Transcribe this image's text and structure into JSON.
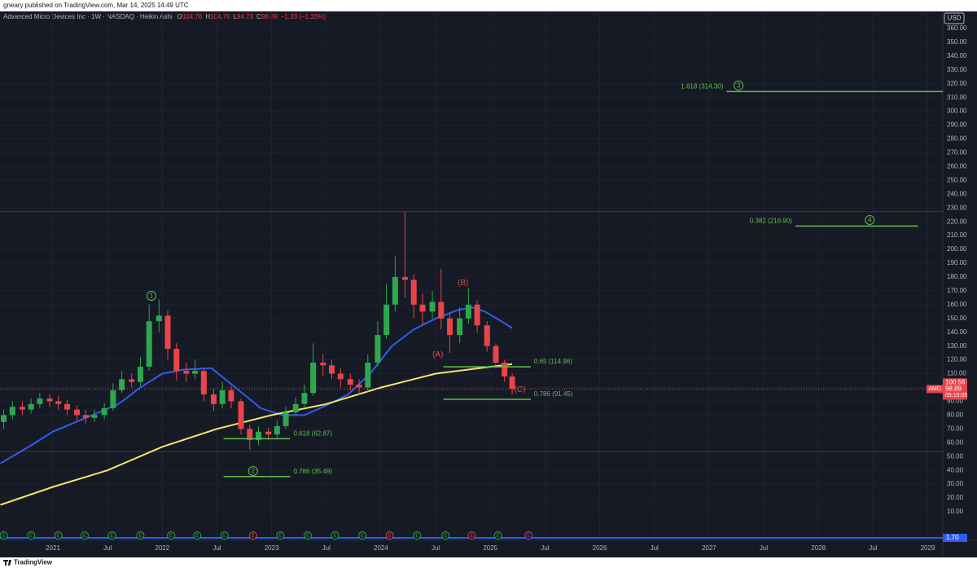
{
  "header": {
    "published": "gneary published on TradingView.com, Mar 14, 2025 14:49 UTC",
    "symbol": "Advanced Micro Devices Inc · 1W · NASDAQ · Heikin Ashi",
    "ohlc": [
      [
        "O",
        "104.76"
      ],
      [
        "H",
        "104.76"
      ],
      [
        "L",
        "94.73"
      ],
      [
        "C",
        "98.89"
      ]
    ],
    "change": "−1.33 (−1.33%)",
    "currency": "USD"
  },
  "footer": {
    "brand": "TradingView"
  },
  "chart_data": {
    "type": "candlestick",
    "x": [
      2020.55,
      2020.63,
      2020.72,
      2020.8,
      2020.88,
      2020.97,
      2021.05,
      2021.13,
      2021.22,
      2021.3,
      2021.38,
      2021.47,
      2021.55,
      2021.63,
      2021.72,
      2021.8,
      2021.88,
      2021.97,
      2022.05,
      2022.13,
      2022.22,
      2022.3,
      2022.38,
      2022.47,
      2022.55,
      2022.63,
      2022.72,
      2022.8,
      2022.88,
      2022.97,
      2023.05,
      2023.13,
      2023.22,
      2023.3,
      2023.38,
      2023.47,
      2023.55,
      2023.63,
      2023.72,
      2023.8,
      2023.88,
      2023.97,
      2024.05,
      2024.13,
      2024.22,
      2024.3,
      2024.38,
      2024.47,
      2024.55,
      2024.63,
      2024.72,
      2024.8,
      2024.88,
      2024.97,
      2025.05,
      2025.13,
      2025.2
    ],
    "open": [
      75,
      80,
      86,
      84,
      88,
      92,
      90,
      88,
      84,
      80,
      78,
      80,
      85,
      98,
      106,
      104,
      115,
      148,
      152,
      128,
      112,
      110,
      112,
      95,
      88,
      98,
      90,
      70,
      62,
      68,
      66,
      72,
      82,
      88,
      96,
      118,
      116,
      110,
      106,
      102,
      100,
      118,
      138,
      160,
      180,
      178,
      160,
      155,
      162,
      150,
      138,
      150,
      160,
      145,
      130,
      118,
      108
    ],
    "high": [
      84,
      90,
      90,
      92,
      96,
      95,
      94,
      91,
      87,
      84,
      84,
      89,
      103,
      112,
      110,
      122,
      160,
      164,
      156,
      132,
      118,
      120,
      114,
      99,
      104,
      101,
      92,
      73,
      72,
      71,
      76,
      86,
      93,
      102,
      132,
      124,
      120,
      114,
      110,
      106,
      124,
      148,
      175,
      195,
      227,
      182,
      168,
      170,
      186,
      154,
      158,
      172,
      163,
      148,
      132,
      120,
      110
    ],
    "low": [
      70,
      77,
      80,
      81,
      85,
      86,
      84,
      80,
      76,
      74,
      75,
      77,
      83,
      96,
      100,
      101,
      112,
      140,
      120,
      105,
      104,
      106,
      90,
      83,
      85,
      85,
      66,
      55,
      58,
      62,
      63,
      70,
      80,
      85,
      94,
      108,
      106,
      100,
      98,
      95,
      97,
      115,
      135,
      155,
      165,
      150,
      145,
      150,
      142,
      125,
      132,
      146,
      140,
      126,
      114,
      104,
      95
    ],
    "close": [
      80,
      86,
      84,
      88,
      92,
      90,
      88,
      84,
      80,
      78,
      80,
      85,
      98,
      106,
      104,
      115,
      148,
      152,
      128,
      112,
      110,
      112,
      95,
      88,
      98,
      90,
      70,
      62,
      68,
      66,
      72,
      82,
      88,
      96,
      118,
      116,
      110,
      106,
      102,
      100,
      118,
      138,
      160,
      180,
      178,
      160,
      155,
      162,
      150,
      138,
      150,
      160,
      145,
      130,
      118,
      108,
      99
    ],
    "up_color": "#2ea84f",
    "down_color": "#e8454a",
    "moving_averages": [
      {
        "color": "#2f5cf0",
        "x": [
          2020.52,
          2020.8,
          2021.0,
          2021.3,
          2021.6,
          2021.8,
          2022.0,
          2022.2,
          2022.45,
          2022.7,
          2022.9,
          2023.1,
          2023.3,
          2023.5,
          2023.7,
          2023.9,
          2024.1,
          2024.3,
          2024.5,
          2024.7,
          2024.83,
          2024.95,
          2025.1,
          2025.2
        ],
        "values": [
          45,
          58,
          68,
          78,
          88,
          100,
          110,
          113,
          114,
          98,
          85,
          80,
          80,
          87,
          95,
          110,
          130,
          142,
          150,
          156,
          158,
          155,
          148,
          143
        ]
      },
      {
        "color": "#f2e56b",
        "x": [
          2020.52,
          2021.0,
          2021.5,
          2022.0,
          2022.5,
          2023.0,
          2023.5,
          2024.0,
          2024.5,
          2025.0,
          2025.2
        ],
        "values": [
          15,
          28,
          40,
          57,
          70,
          80,
          88,
          100,
          110,
          115,
          117
        ]
      }
    ],
    "fib_levels": [
      {
        "label": "0.618 (62.87)",
        "value": 62.87,
        "x": [
          2022.56,
          2023.17
        ],
        "label_position": "right"
      },
      {
        "label": "0.786 (35.49)",
        "value": 35.49,
        "x": [
          2022.56,
          2023.17
        ],
        "label_position": "right"
      },
      {
        "label": "0.65 (114.96)",
        "value": 114.96,
        "x": [
          2024.57,
          2025.37
        ],
        "label_position": "right"
      },
      {
        "label": "0.786 (91.45)",
        "value": 91.45,
        "x": [
          2024.57,
          2025.37
        ],
        "label_position": "right"
      },
      {
        "label": "1.618 (314.30)",
        "value": 314.3,
        "x": [
          2027.16,
          2029.14
        ],
        "label_position": "left"
      },
      {
        "label": "0.382 (216.90)",
        "value": 216.9,
        "x": [
          2027.79,
          2028.91
        ],
        "label_position": "left"
      }
    ],
    "fib_color": "#5fbf4a",
    "wave_labels": [
      {
        "text": "1",
        "x": 2021.9,
        "y": 166.4,
        "color": "#5fbf4a",
        "circled": true
      },
      {
        "text": "2",
        "x": 2022.83,
        "y": 39.5,
        "color": "#5fbf4a",
        "circled": true
      },
      {
        "text": "3",
        "x": 2027.27,
        "y": 318.7,
        "color": "#5fbf4a",
        "circled": true
      },
      {
        "text": "4",
        "x": 2028.47,
        "y": 221.3,
        "color": "#5fbf4a",
        "circled": true
      },
      {
        "text": "(A)",
        "x": 2024.52,
        "y": 123.9,
        "color": "#e8454a",
        "circled": false
      },
      {
        "text": "(B)",
        "x": 2024.75,
        "y": 175.8,
        "color": "#e8454a",
        "circled": false
      },
      {
        "text": "(C)",
        "x": 2025.27,
        "y": 98.5,
        "color": "#e8454a",
        "circled": false
      }
    ],
    "price_lines": [
      227.3,
      53.6
    ],
    "last_price": {
      "value": 98.89,
      "label": "98.89",
      "symbol": "AMD",
      "prev": "100.56",
      "countdown": "05:10:05"
    },
    "indicator_tag": "1.70",
    "events": [
      {
        "x": 2020.55,
        "label": "E",
        "color": "#2ea84f"
      },
      {
        "x": 2020.8,
        "label": "E",
        "color": "#2ea84f"
      },
      {
        "x": 2021.05,
        "label": "E",
        "color": "#2ea84f"
      },
      {
        "x": 2021.29,
        "label": "E",
        "color": "#2ea84f"
      },
      {
        "x": 2021.54,
        "label": "E",
        "color": "#2ea84f"
      },
      {
        "x": 2021.8,
        "label": "E",
        "color": "#2ea84f"
      },
      {
        "x": 2022.08,
        "label": "E",
        "color": "#2ea84f"
      },
      {
        "x": 2022.32,
        "label": "E",
        "color": "#2ea84f"
      },
      {
        "x": 2022.57,
        "label": "E",
        "color": "#2ea84f"
      },
      {
        "x": 2022.83,
        "label": "E",
        "color": "#e8454a"
      },
      {
        "x": 2023.08,
        "label": "E",
        "color": "#2ea84f"
      },
      {
        "x": 2023.33,
        "label": "E",
        "color": "#2ea84f"
      },
      {
        "x": 2023.58,
        "label": "E",
        "color": "#2ea84f"
      },
      {
        "x": 2023.83,
        "label": "E",
        "color": "#2ea84f"
      },
      {
        "x": 2024.08,
        "label": "E",
        "color": "#e8454a"
      },
      {
        "x": 2024.33,
        "label": "E",
        "color": "#2ea84f"
      },
      {
        "x": 2024.59,
        "label": "E",
        "color": "#2ea84f"
      },
      {
        "x": 2024.83,
        "label": "E",
        "color": "#e8454a"
      },
      {
        "x": 2025.07,
        "label": "E",
        "color": "#2ea84f"
      },
      {
        "x": 2025.35,
        "label": "E",
        "color": "#b040d0"
      }
    ],
    "xlim": [
      2020.516,
      2029.138
    ],
    "xticks": [
      {
        "value": 2021,
        "label": "2021"
      },
      {
        "value": 2021.5,
        "label": "Jul"
      },
      {
        "value": 2022,
        "label": "2022"
      },
      {
        "value": 2022.5,
        "label": "Jul"
      },
      {
        "value": 2023,
        "label": "2023"
      },
      {
        "value": 2023.5,
        "label": "Jul"
      },
      {
        "value": 2024,
        "label": "2024"
      },
      {
        "value": 2024.5,
        "label": "Jul"
      },
      {
        "value": 2025,
        "label": "2025"
      },
      {
        "value": 2025.5,
        "label": "Jul"
      },
      {
        "value": 2026,
        "label": "2026"
      },
      {
        "value": 2026.5,
        "label": "Jul"
      },
      {
        "value": 2027,
        "label": "2027"
      },
      {
        "value": 2027.5,
        "label": "Jul"
      },
      {
        "value": 2028,
        "label": "2028"
      },
      {
        "value": 2028.5,
        "label": "Jul"
      },
      {
        "value": 2029,
        "label": "2029"
      }
    ],
    "ylim": [
      -3,
      370
    ],
    "yticks": [
      {
        "value": 10,
        "label": "10.00"
      },
      {
        "value": 20,
        "label": "20.00"
      },
      {
        "value": 30,
        "label": "30.00"
      },
      {
        "value": 40,
        "label": "40.00"
      },
      {
        "value": 50,
        "label": "50.00"
      },
      {
        "value": 60,
        "label": "60.00"
      },
      {
        "value": 70,
        "label": "70.00"
      },
      {
        "value": 80,
        "label": "80.00"
      },
      {
        "value": 90,
        "label": "90.00"
      },
      {
        "value": 100,
        "label": "100.00"
      },
      {
        "value": 110,
        "label": "110.00"
      },
      {
        "value": 120,
        "label": "120.00"
      },
      {
        "value": 130,
        "label": "130.00"
      },
      {
        "value": 140,
        "label": "140.00"
      },
      {
        "value": 150,
        "label": "150.00"
      },
      {
        "value": 160,
        "label": "160.00"
      },
      {
        "value": 170,
        "label": "170.00"
      },
      {
        "value": 180,
        "label": "180.00"
      },
      {
        "value": 190,
        "label": "190.00"
      },
      {
        "value": 200,
        "label": "200.00"
      },
      {
        "value": 210,
        "label": "210.00"
      },
      {
        "value": 220,
        "label": "220.00"
      },
      {
        "value": 230,
        "label": "230.00"
      },
      {
        "value": 240,
        "label": "240.00"
      },
      {
        "value": 250,
        "label": "250.00"
      },
      {
        "value": 260,
        "label": "260.00"
      },
      {
        "value": 270,
        "label": "270.00"
      },
      {
        "value": 280,
        "label": "280.00"
      },
      {
        "value": 290,
        "label": "290.00"
      },
      {
        "value": 300,
        "label": "300.00"
      },
      {
        "value": 310,
        "label": "310.00"
      },
      {
        "value": 320,
        "label": "320.00"
      },
      {
        "value": 330,
        "label": "330.00"
      },
      {
        "value": 340,
        "label": "340.00"
      },
      {
        "value": 350,
        "label": "350.00"
      },
      {
        "value": 360,
        "label": "360.00"
      }
    ],
    "grid": true
  }
}
